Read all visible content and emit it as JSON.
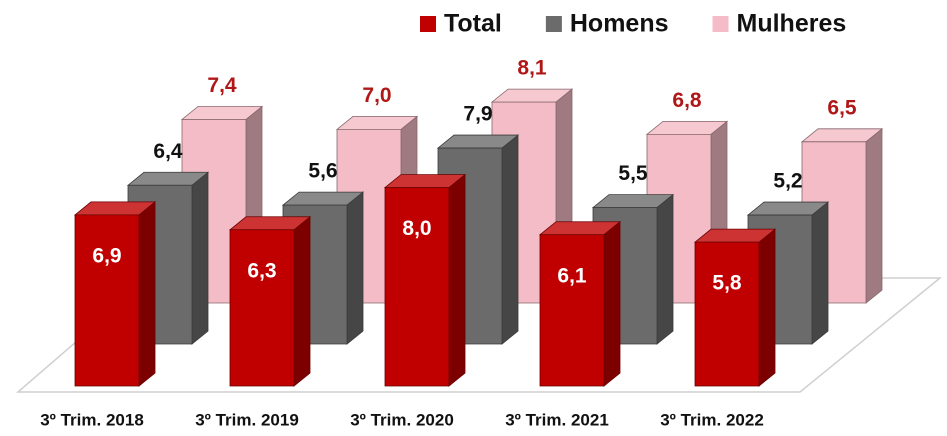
{
  "chart_data": {
    "type": "bar3d",
    "categories": [
      "3º Trim. 2018",
      "3º Trim. 2019",
      "3º Trim. 2020",
      "3º Trim. 2021",
      "3º Trim. 2022"
    ],
    "series": [
      {
        "name": "Total",
        "color": "#c00000",
        "values": [
          6.9,
          6.3,
          8.0,
          6.1,
          5.8
        ],
        "value_labels": [
          "6,9",
          "6,3",
          "8,0",
          "6,1",
          "5,8"
        ]
      },
      {
        "name": "Homens",
        "color": "#6b6b6b",
        "values": [
          6.4,
          5.6,
          7.9,
          5.5,
          5.2
        ],
        "value_labels": [
          "6,4",
          "5,6",
          "7,9",
          "5,5",
          "5,2"
        ]
      },
      {
        "name": "Mulheres",
        "color": "#f4bcc6",
        "values": [
          7.4,
          7.0,
          8.1,
          6.8,
          6.5
        ],
        "value_labels": [
          "7,4",
          "7,0",
          "8,1",
          "6,8",
          "6,5"
        ]
      }
    ],
    "legend": "top-right"
  }
}
